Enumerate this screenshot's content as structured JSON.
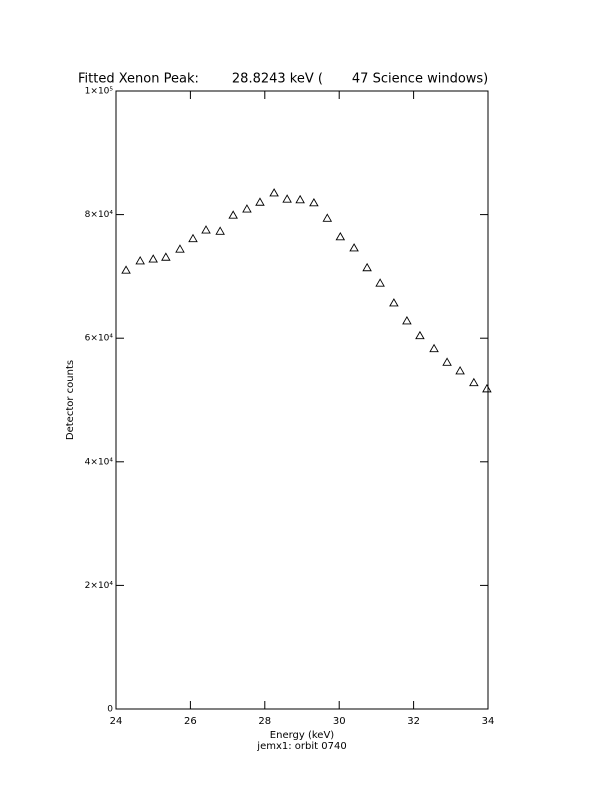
{
  "chart_data": {
    "type": "scatter",
    "title": "Fitted Xenon Peak:        28.8243 keV (       47 Science windows)",
    "x_label": "Energy (keV)",
    "y_label": "Detector counts",
    "footnote": "jemx1: orbit 0740",
    "xlim": [
      24,
      34
    ],
    "xticks": [
      24,
      26,
      28,
      30,
      32,
      34
    ],
    "ylim": [
      0,
      100000
    ],
    "yticks": [
      0,
      {
        "value": 20000,
        "label": "2×10⁴"
      },
      {
        "value": 40000,
        "label": "4×10⁴"
      },
      {
        "value": 60000,
        "label": "6×10⁴"
      },
      {
        "value": 80000,
        "label": "8×10⁴"
      },
      {
        "value": 100000,
        "label": "1×10⁵"
      }
    ],
    "color": "#000000",
    "series": [
      {
        "marker": "triangle",
        "x": [
          24.27,
          24.65,
          25.0,
          25.34,
          25.72,
          26.07,
          26.42,
          26.8,
          27.15,
          27.52,
          27.87,
          28.25,
          28.6,
          28.95,
          29.32,
          29.68,
          30.03,
          30.4,
          30.75,
          31.1,
          31.47,
          31.82,
          32.17,
          32.55,
          32.9,
          33.25,
          33.62,
          33.97
        ],
        "values": [
          71000,
          72500,
          72800,
          73100,
          74400,
          76100,
          77500,
          77300,
          79900,
          80900,
          82000,
          83500,
          82500,
          82400,
          81900,
          79400,
          76400,
          74600,
          71400,
          68900,
          65700,
          62800,
          60400,
          58300,
          56100,
          54700,
          52800,
          51800
        ]
      },
      {
        "marker": "line",
        "x": [
          24.27,
          25,
          25.5,
          26,
          26.5,
          27,
          27.5,
          28,
          28.5,
          29,
          29.5,
          30,
          30.5,
          31,
          31.5,
          32,
          32.5,
          33,
          33.5,
          34
        ],
        "values": [
          71800,
          72500,
          73300,
          75000,
          77000,
          79000,
          81000,
          82500,
          83000,
          82500,
          80500,
          77000,
          73300,
          69500,
          65800,
          62600,
          59600,
          56700,
          54100,
          51600
        ]
      }
    ]
  }
}
